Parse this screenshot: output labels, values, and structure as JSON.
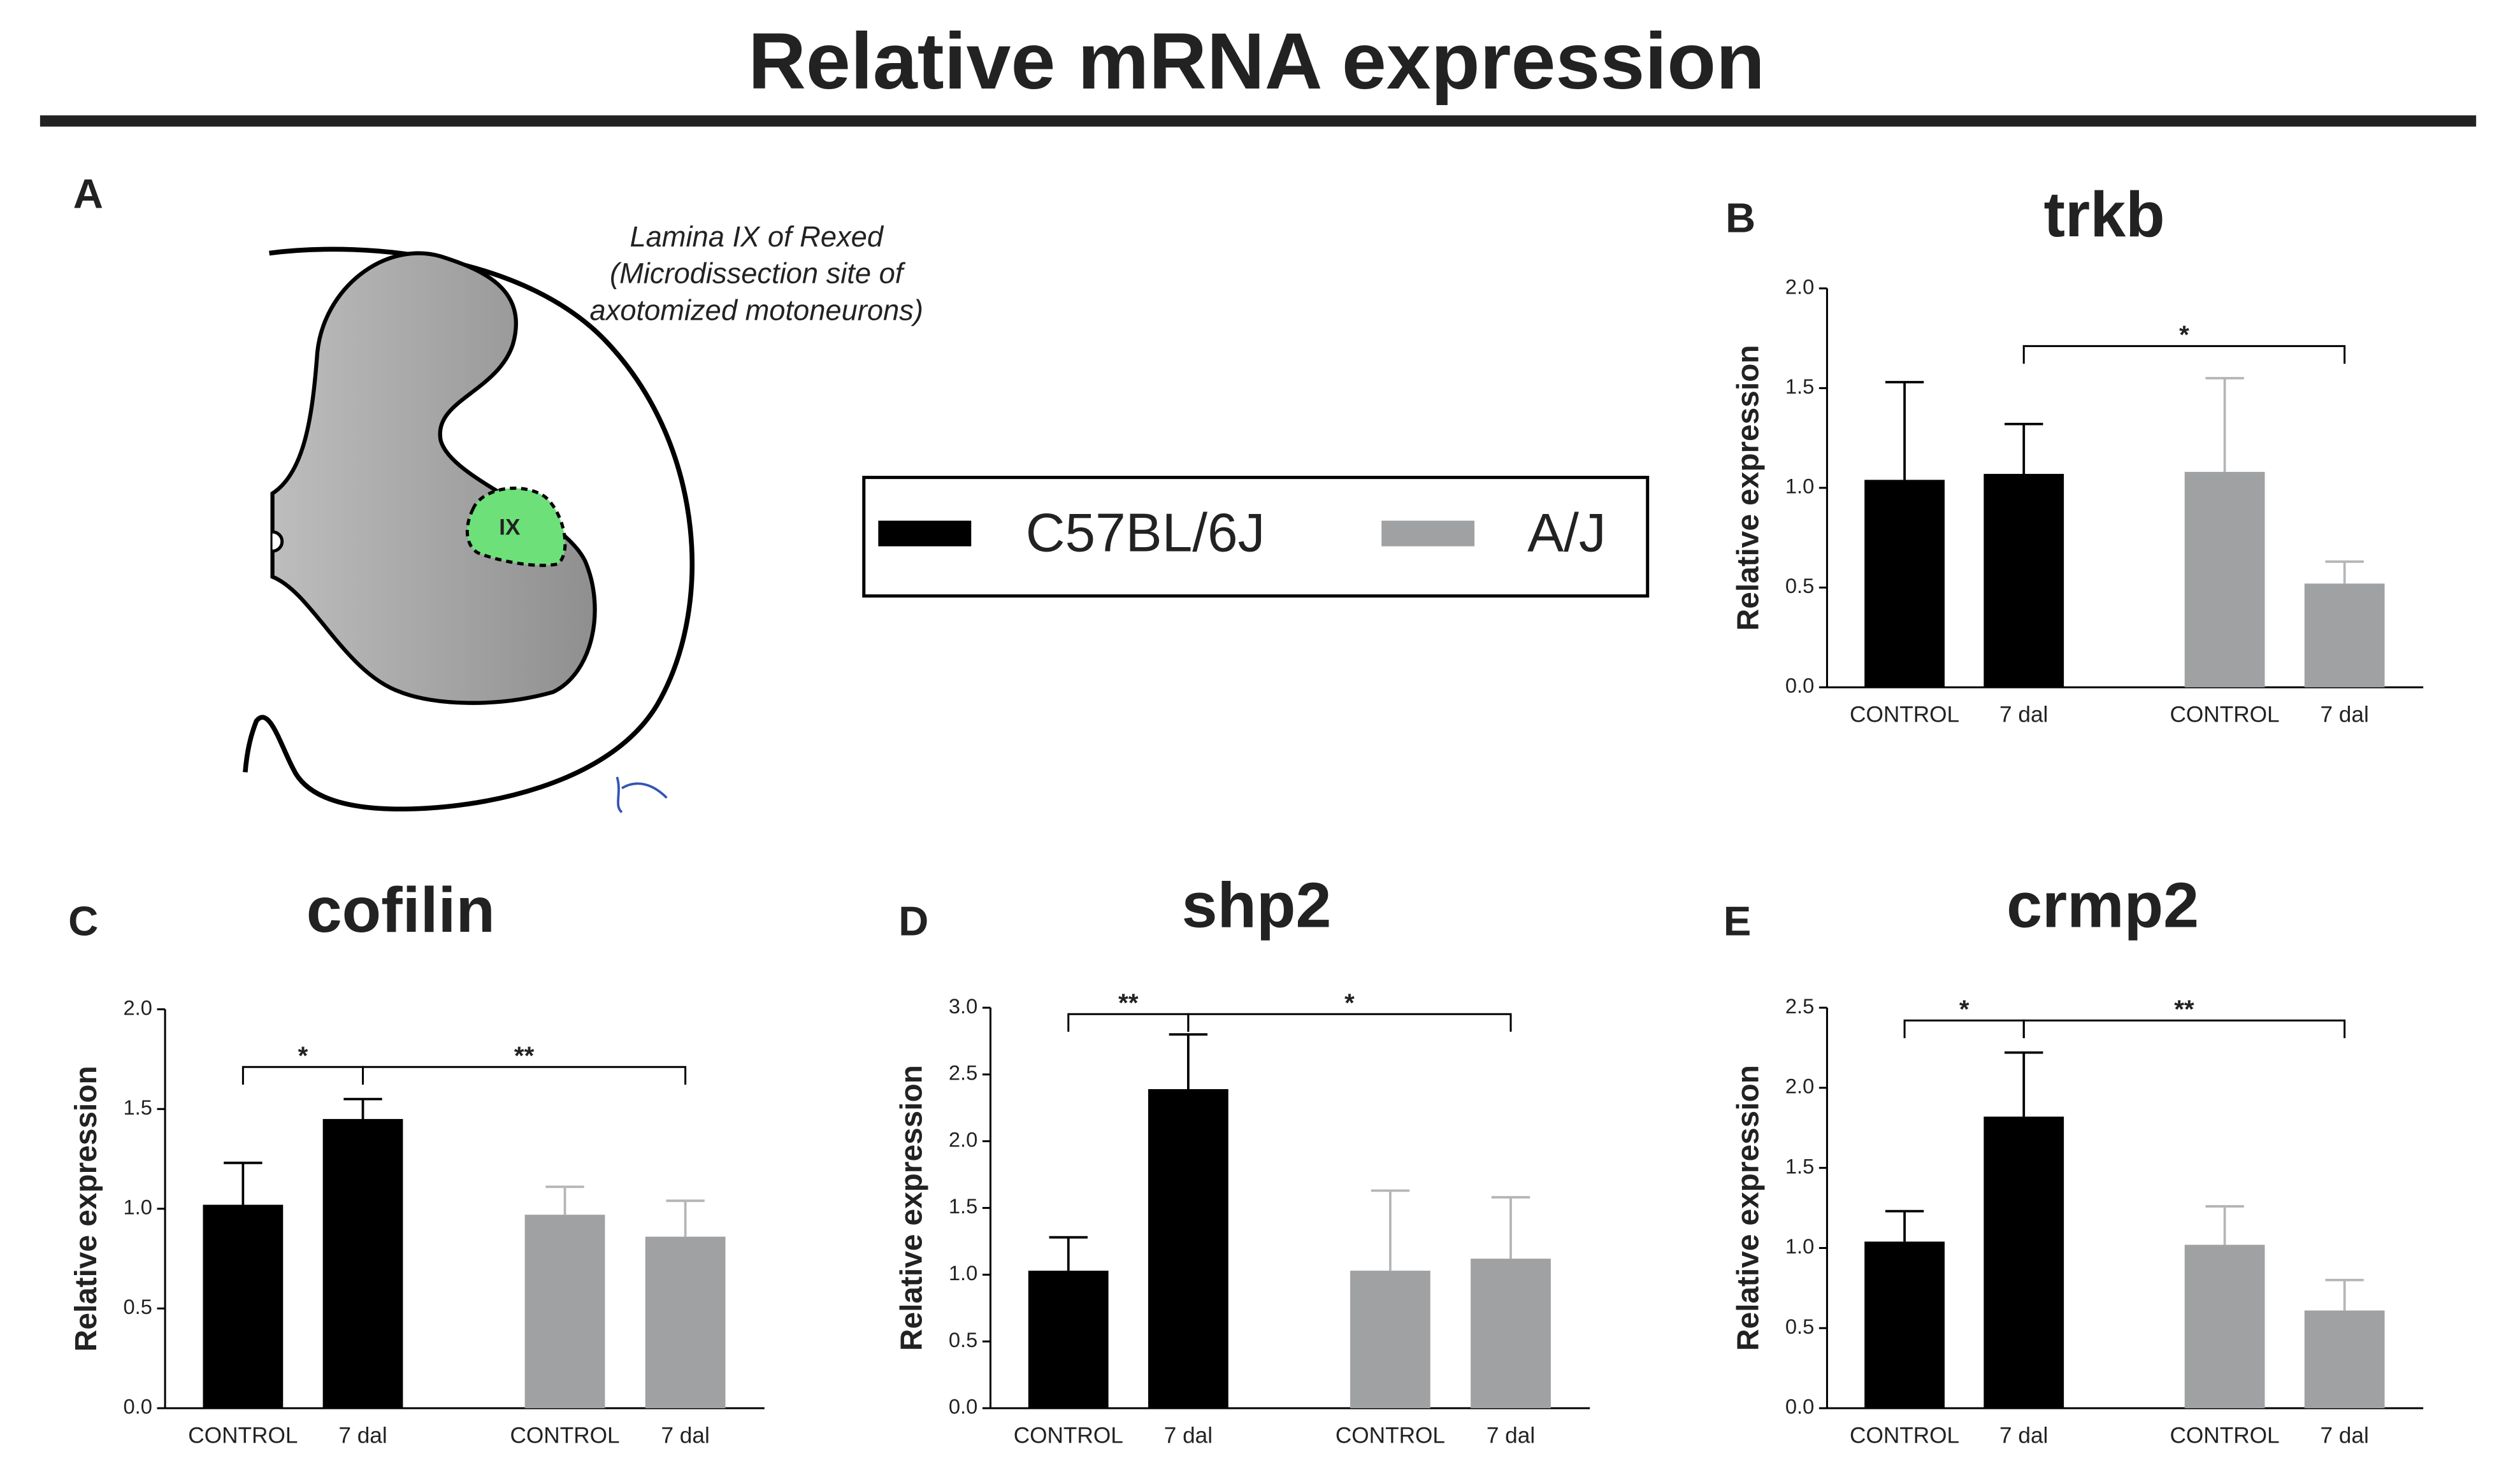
{
  "title": "Relative mRNA expression",
  "panel_labels": [
    "A",
    "B",
    "C",
    "D",
    "E"
  ],
  "diagram": {
    "annotation": [
      "Lamina IX of Rexed",
      "(Microdissection site of",
      "axotomized motoneurons)"
    ],
    "region_label": "IX"
  },
  "chart_data": [
    {
      "type": "bar",
      "title": "trkb",
      "y_label": "Relative expression",
      "categories": [
        "CONTROL",
        "7 dal"
      ],
      "series": [
        {
          "name": "C57BL/6J",
          "color": "#000000",
          "error_color": "#000000",
          "values": [
            1.04,
            1.07
          ],
          "errors": [
            0.49,
            0.25
          ]
        },
        {
          "name": "A/J",
          "color": "#a0a1a3",
          "error_color": "#b4b5b7",
          "values": [
            1.08,
            0.52
          ],
          "errors": [
            0.47,
            0.11
          ]
        }
      ],
      "ylim": [
        0,
        2
      ],
      "yticks": [
        {
          "value": 0,
          "label": "0.0"
        },
        0.5,
        {
          "value": 1,
          "label": "1.0"
        },
        1.5,
        {
          "value": 2,
          "label": "2.0"
        }
      ],
      "annotations": [
        {
          "label": "*",
          "from": 1,
          "to": 3
        }
      ]
    },
    {
      "type": "bar",
      "title": "cofilin",
      "y_label": "Relative expression",
      "categories": [
        "CONTROL",
        "7 dal"
      ],
      "series": [
        {
          "name": "C57BL/6J",
          "color": "#000000",
          "error_color": "#000000",
          "values": [
            1.02,
            1.45
          ],
          "errors": [
            0.21,
            0.1
          ]
        },
        {
          "name": "A/J",
          "color": "#a0a1a3",
          "error_color": "#b4b5b7",
          "values": [
            0.97,
            0.86
          ],
          "errors": [
            0.14,
            0.18
          ]
        }
      ],
      "ylim": [
        0,
        2
      ],
      "yticks": [
        {
          "value": 0,
          "label": "0.0"
        },
        0.5,
        {
          "value": 1,
          "label": "1.0"
        },
        1.5,
        {
          "value": 2,
          "label": "2.0"
        }
      ],
      "annotations": [
        {
          "label": "*",
          "from": 0,
          "to": 1
        },
        {
          "label": "**",
          "from": 1,
          "to": 3
        }
      ]
    },
    {
      "type": "bar",
      "title": "shp2",
      "y_label": "Relative expression",
      "categories": [
        "CONTROL",
        "7 dal"
      ],
      "series": [
        {
          "name": "C57BL/6J",
          "color": "#000000",
          "error_color": "#000000",
          "values": [
            1.03,
            2.39
          ],
          "errors": [
            0.25,
            0.41
          ]
        },
        {
          "name": "A/J",
          "color": "#a0a1a3",
          "error_color": "#b4b5b7",
          "values": [
            1.03,
            1.12
          ],
          "errors": [
            0.6,
            0.46
          ]
        }
      ],
      "ylim": [
        0,
        3
      ],
      "yticks": [
        {
          "value": 0,
          "label": "0.0"
        },
        0.5,
        {
          "value": 1,
          "label": "1.0"
        },
        1.5,
        {
          "value": 2,
          "label": "2.0"
        },
        2.5,
        {
          "value": 3,
          "label": "3.0"
        }
      ],
      "annotations": [
        {
          "label": "**",
          "from": 0,
          "to": 1
        },
        {
          "label": "*",
          "from": 1,
          "to": 3
        }
      ]
    },
    {
      "type": "bar",
      "title": "crmp2",
      "y_label": "Relative expression",
      "categories": [
        "CONTROL",
        "7 dal"
      ],
      "series": [
        {
          "name": "C57BL/6J",
          "color": "#000000",
          "error_color": "#000000",
          "values": [
            1.04,
            1.82
          ],
          "errors": [
            0.19,
            0.4
          ]
        },
        {
          "name": "A/J",
          "color": "#a0a1a3",
          "error_color": "#b4b5b7",
          "values": [
            1.02,
            0.61
          ],
          "errors": [
            0.24,
            0.19
          ]
        }
      ],
      "ylim": [
        0,
        2.5
      ],
      "yticks": [
        {
          "value": 0,
          "label": "0.0"
        },
        0.5,
        {
          "value": 1,
          "label": "1.0"
        },
        1.5,
        {
          "value": 2,
          "label": "2.0"
        },
        2.5
      ],
      "annotations": [
        {
          "label": "*",
          "from": 0,
          "to": 1
        },
        {
          "label": "**",
          "from": 1,
          "to": 3
        }
      ]
    }
  ]
}
